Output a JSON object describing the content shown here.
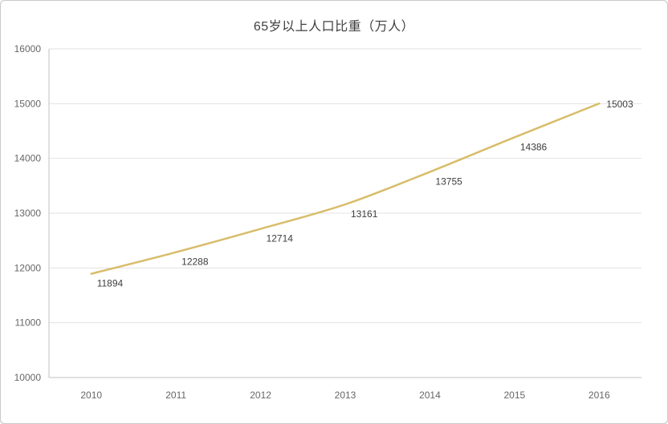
{
  "chart_data": {
    "type": "line",
    "title": "65岁以上人口比重（万人）",
    "categories": [
      "2010",
      "2011",
      "2012",
      "2013",
      "2014",
      "2015",
      "2016"
    ],
    "series": [
      {
        "name": "65岁以上人口",
        "values": [
          11894,
          12288,
          12714,
          13161,
          13755,
          14386,
          15003
        ]
      }
    ],
    "xlabel": "",
    "ylabel": "",
    "ylim": [
      10000,
      16000
    ],
    "ytick_step": 1000,
    "grid": true,
    "legend_position": "none",
    "data_labels": true,
    "colors": {
      "line": "#d8bd6a",
      "title": "#404040",
      "tick_label": "#666666",
      "data_label": "#3d3d3d",
      "gridline": "#e2e2e2",
      "axis": "#c0c0c0",
      "card_border": "#c9c9c9",
      "background": "#ffffff"
    }
  }
}
